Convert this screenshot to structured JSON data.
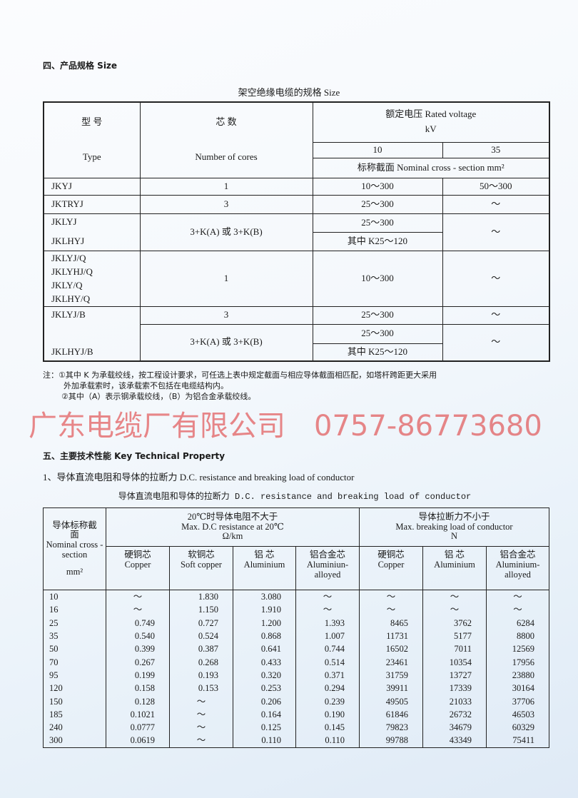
{
  "section4": {
    "title": "四、产品规格 Size",
    "table_caption": "架空绝缘电缆的规格 Size",
    "head": {
      "type_cn": "型 号",
      "type_en": "Type",
      "cores_cn": "芯 数",
      "cores_en": "Number of cores",
      "voltage": "额定电压 Rated voltage",
      "voltage_unit": "kV",
      "v10": "10",
      "v35": "35",
      "nominal": "标称截面 Nominal cross - section mm²"
    },
    "rows": [
      {
        "type": "JKYJ",
        "cores": "1",
        "v10": "10～300",
        "v35": "50～300"
      },
      {
        "type": "JKTRYJ",
        "cores": "3",
        "v10": "25～300",
        "v35": "～"
      },
      {
        "type1": "JKLYJ",
        "type2": "JKLHYJ",
        "cores": "3+K(A) 或 3+K(B)",
        "v10a": "25～300",
        "v10b": "其中 K25～120",
        "v35": "～"
      },
      {
        "types": [
          "JKLYJ/Q",
          "JKLYHJ/Q",
          "JKLY/Q",
          "JKLHY/Q"
        ],
        "cores": "1",
        "v10": "10～300",
        "v35": "～"
      },
      {
        "type1": "JKLYJ/B",
        "type2": "JKLHYJ/B",
        "cores1": "3",
        "v10_1": "25～300",
        "v35_1": "～",
        "cores2": "3+K(A) 或 3+K(B)",
        "v10a": "25～300",
        "v10b": "其中 K25～120",
        "v35_2": "～"
      }
    ],
    "notes": [
      "注：①其中 K 为承载绞线，按工程设计要求，可任选上表中规定截面与相应导体截面相匹配，如塔杆跨距更大采用",
      "外加承载索时，该承载索不包括在电缆结构内。",
      "②其中（A）表示钢承载绞线，（B）为铝合金承载绞线。"
    ]
  },
  "section5": {
    "title": "五、主要技术性能 Key Technical Property",
    "subtitle": "1、导体直流电阻和导体的拉断力 D.C. resistance and breaking load of conductor",
    "table_caption": "导体直流电阻和导体的拉断力 D.C. resistance and breaking load of conductor",
    "head": {
      "section_cn": "导体标称截面",
      "section_en": "Nominal cross -section",
      "section_unit": "mm²",
      "res_cn": "20℃时导体电阻不大于",
      "res_en": "Max. D.C resistance at 20℃",
      "res_unit": "Ω/km",
      "load_cn": "导体拉断力不小于",
      "load_en": "Max. breaking load of conductor",
      "load_unit": "N",
      "cols": [
        {
          "cn": "硬铜芯",
          "en": "Copper"
        },
        {
          "cn": "软铜芯",
          "en": "Soft copper"
        },
        {
          "cn": "铝 芯",
          "en": "Aluminium"
        },
        {
          "cn": "铝合金芯",
          "en": "Aluminiun-alloyed"
        },
        {
          "cn": "硬铜芯",
          "en": "Copper"
        },
        {
          "cn": "铝 芯",
          "en": "Aluminium"
        },
        {
          "cn": "铝合金芯",
          "en": "Aluminium-alloyed"
        }
      ]
    },
    "rows": [
      [
        "10",
        "～",
        "1.830",
        "3.080",
        "～",
        "～",
        "～",
        "～"
      ],
      [
        "16",
        "～",
        "1.150",
        "1.910",
        "～",
        "～",
        "～",
        "～"
      ],
      [
        "25",
        "0.749",
        "0.727",
        "1.200",
        "1.393",
        "8465",
        "3762",
        "6284"
      ],
      [
        "35",
        "0.540",
        "0.524",
        "0.868",
        "1.007",
        "11731",
        "5177",
        "8800"
      ],
      [
        "50",
        "0.399",
        "0.387",
        "0.641",
        "0.744",
        "16502",
        "7011",
        "12569"
      ],
      [
        "70",
        "0.267",
        "0.268",
        "0.433",
        "0.514",
        "23461",
        "10354",
        "17956"
      ],
      [
        "95",
        "0.199",
        "0.193",
        "0.320",
        "0.371",
        "31759",
        "13727",
        "23880"
      ],
      [
        "120",
        "0.158",
        "0.153",
        "0.253",
        "0.294",
        "39911",
        "17339",
        "30164"
      ],
      [
        "150",
        "0.128",
        "～",
        "0.206",
        "0.239",
        "49505",
        "21033",
        "37706"
      ],
      [
        "185",
        "0.1021",
        "～",
        "0.164",
        "0.190",
        "61846",
        "26732",
        "46503"
      ],
      [
        "240",
        "0.0777",
        "～",
        "0.125",
        "0.145",
        "79823",
        "34679",
        "60329"
      ],
      [
        "300",
        "0.0619",
        "～",
        "0.110",
        "0.110",
        "99788",
        "43349",
        "75411"
      ]
    ]
  },
  "watermark": {
    "company": "广东电缆厂有限公司",
    "phone": "0757-86773680",
    "color": "#dc2828"
  }
}
